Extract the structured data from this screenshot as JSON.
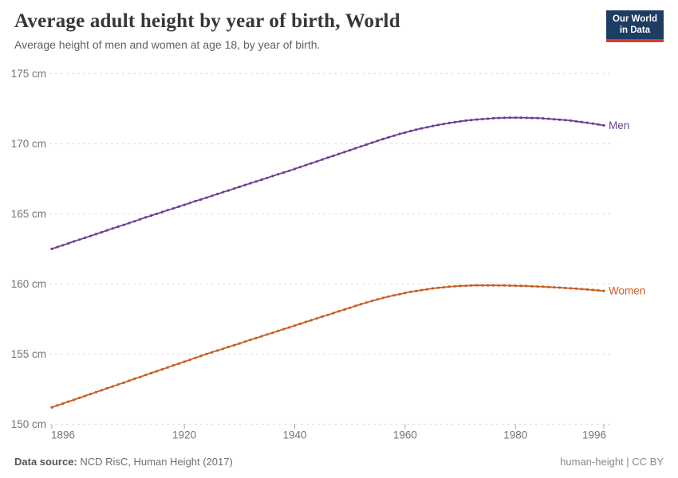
{
  "header": {
    "title": "Average adult height by year of birth, World",
    "subtitle": "Average height of men and women at age 18, by year of birth.",
    "logo": {
      "line1": "Our World",
      "line2": "in Data",
      "bg_color": "#1d3d63",
      "accent_color": "#e0362d"
    }
  },
  "footer": {
    "datasource_label": "Data source:",
    "datasource_value": "NCD RisC, Human Height (2017)",
    "note": "human-height | CC BY"
  },
  "chart_data": {
    "type": "line",
    "title": "Average adult height by year of birth, World",
    "xlabel": "",
    "ylabel": "",
    "xlim": [
      1896,
      1996
    ],
    "ylim": [
      150,
      175
    ],
    "grid": "horizontal-dashed",
    "point_markers": true,
    "legend_position": "line-end-labels",
    "layout": {
      "grid_color": "#dedede",
      "tick_color": "#757575",
      "tick_mark_color": "#a5a5a5"
    },
    "yticks": [
      {
        "value": 150,
        "label": "150 cm"
      },
      {
        "value": 155,
        "label": "155 cm"
      },
      {
        "value": 160,
        "label": "160 cm"
      },
      {
        "value": 165,
        "label": "165 cm"
      },
      {
        "value": 170,
        "label": "170 cm"
      },
      {
        "value": 175,
        "label": "175 cm"
      }
    ],
    "xticks": [
      {
        "value": 1896,
        "label": "1896"
      },
      {
        "value": 1920,
        "label": "1920"
      },
      {
        "value": 1940,
        "label": "1940"
      },
      {
        "value": 1960,
        "label": "1960"
      },
      {
        "value": 1980,
        "label": "1980"
      },
      {
        "value": 1996,
        "label": "1996"
      }
    ],
    "years": [
      1896,
      1897,
      1898,
      1899,
      1900,
      1901,
      1902,
      1903,
      1904,
      1905,
      1906,
      1907,
      1908,
      1909,
      1910,
      1911,
      1912,
      1913,
      1914,
      1915,
      1916,
      1917,
      1918,
      1919,
      1920,
      1921,
      1922,
      1923,
      1924,
      1925,
      1926,
      1927,
      1928,
      1929,
      1930,
      1931,
      1932,
      1933,
      1934,
      1935,
      1936,
      1937,
      1938,
      1939,
      1940,
      1941,
      1942,
      1943,
      1944,
      1945,
      1946,
      1947,
      1948,
      1949,
      1950,
      1951,
      1952,
      1953,
      1954,
      1955,
      1956,
      1957,
      1958,
      1959,
      1960,
      1961,
      1962,
      1963,
      1964,
      1965,
      1966,
      1967,
      1968,
      1969,
      1970,
      1971,
      1972,
      1973,
      1974,
      1975,
      1976,
      1977,
      1978,
      1979,
      1980,
      1981,
      1982,
      1983,
      1984,
      1985,
      1986,
      1987,
      1988,
      1989,
      1990,
      1991,
      1992,
      1993,
      1994,
      1995,
      1996
    ],
    "series": [
      {
        "name": "Men",
        "color": "#6d3e91",
        "unit": "cm",
        "values": [
          162.5,
          162.63,
          162.76,
          162.89,
          163.03,
          163.16,
          163.29,
          163.42,
          163.55,
          163.68,
          163.82,
          163.95,
          164.08,
          164.21,
          164.34,
          164.47,
          164.61,
          164.74,
          164.87,
          165.0,
          165.13,
          165.26,
          165.38,
          165.51,
          165.64,
          165.77,
          165.9,
          166.02,
          166.15,
          166.28,
          166.41,
          166.54,
          166.66,
          166.79,
          166.92,
          167.05,
          167.18,
          167.3,
          167.43,
          167.56,
          167.69,
          167.82,
          167.94,
          168.07,
          168.2,
          168.33,
          168.47,
          168.6,
          168.73,
          168.87,
          169.0,
          169.13,
          169.27,
          169.4,
          169.53,
          169.67,
          169.8,
          169.93,
          170.07,
          170.2,
          170.33,
          170.45,
          170.57,
          170.69,
          170.79,
          170.9,
          171.0,
          171.09,
          171.17,
          171.26,
          171.33,
          171.4,
          171.47,
          171.53,
          171.59,
          171.64,
          171.68,
          171.72,
          171.75,
          171.78,
          171.81,
          171.83,
          171.84,
          171.85,
          171.85,
          171.85,
          171.84,
          171.83,
          171.82,
          171.8,
          171.77,
          171.74,
          171.71,
          171.68,
          171.64,
          171.59,
          171.54,
          171.49,
          171.43,
          171.37,
          171.3
        ]
      },
      {
        "name": "Women",
        "color": "#c85d23",
        "unit": "cm",
        "values": [
          151.2,
          151.34,
          151.47,
          151.61,
          151.74,
          151.88,
          152.01,
          152.15,
          152.29,
          152.42,
          152.56,
          152.69,
          152.83,
          152.96,
          153.1,
          153.24,
          153.37,
          153.51,
          153.64,
          153.78,
          153.91,
          154.05,
          154.19,
          154.32,
          154.46,
          154.59,
          154.73,
          154.86,
          155.0,
          155.13,
          155.25,
          155.38,
          155.51,
          155.63,
          155.76,
          155.89,
          156.02,
          156.14,
          156.27,
          156.4,
          156.52,
          156.65,
          156.78,
          156.9,
          157.03,
          157.16,
          157.29,
          157.41,
          157.54,
          157.67,
          157.79,
          157.92,
          158.05,
          158.17,
          158.3,
          158.43,
          158.55,
          158.67,
          158.79,
          158.9,
          159.0,
          159.1,
          159.19,
          159.27,
          159.36,
          159.43,
          159.5,
          159.56,
          159.62,
          159.68,
          159.72,
          159.76,
          159.8,
          159.83,
          159.86,
          159.87,
          159.89,
          159.9,
          159.9,
          159.9,
          159.9,
          159.89,
          159.89,
          159.88,
          159.87,
          159.86,
          159.85,
          159.83,
          159.82,
          159.8,
          159.78,
          159.76,
          159.74,
          159.71,
          159.69,
          159.66,
          159.63,
          159.6,
          159.57,
          159.54,
          159.5
        ]
      }
    ]
  }
}
